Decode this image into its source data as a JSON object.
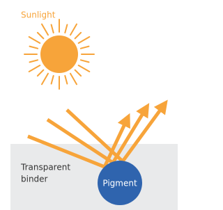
{
  "sun_label": "Sunlight",
  "binder_label": [
    "Transparent",
    "binder"
  ],
  "pigment_label": "Pigment"
}
